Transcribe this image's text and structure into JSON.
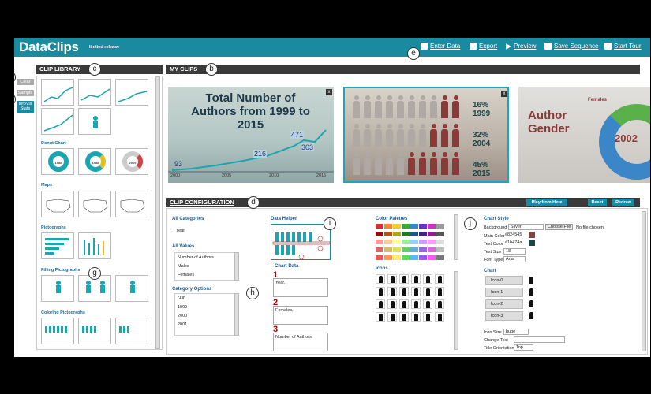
{
  "header": {
    "logo": "DataClips",
    "tagline": "limited release",
    "nav": [
      "Enter Data",
      "Export",
      "Preview",
      "Save Sequence",
      "Start Tour"
    ]
  },
  "side": {
    "clear": "Clear",
    "sample": "Sample",
    "infovis": "InfoVis Stats"
  },
  "annotations": [
    "a",
    "b",
    "c",
    "d",
    "e",
    "f",
    "g",
    "h",
    "i",
    "j"
  ],
  "library": {
    "heading": "CLIP LIBRARY",
    "sections": [
      "Donut Chart",
      "Maps",
      "Pictographs",
      "Filling Pictographs",
      "Coloring Pictographs"
    ],
    "donut_labels": [
      "1988",
      "1988",
      "2009"
    ]
  },
  "myclips": {
    "heading": "MY CLIPS",
    "clip1": {
      "title": "Total Number of Authors from 1999 to 2015",
      "values": [
        "93",
        "216",
        "471",
        "303"
      ],
      "years": [
        "2000",
        "2005",
        "2010",
        "2015"
      ]
    },
    "clip2": {
      "stats": [
        {
          "pct": "16%",
          "year": "1999"
        },
        {
          "pct": "32%",
          "year": "2004"
        },
        {
          "pct": "45%",
          "year": "2015"
        }
      ]
    },
    "clip3": {
      "title": "Author Gender",
      "legend": "Females",
      "value": "2002"
    }
  },
  "config": {
    "heading": "CLIP CONFIGURATION",
    "play": "Play from Here",
    "reset": "Reset",
    "redraw": "Redraw",
    "categories_label": "All Categories",
    "categories": [
      "Year"
    ],
    "values_label": "All Values",
    "values": [
      "Number of Authors",
      "Males",
      "Females"
    ],
    "options_label": "Category Options",
    "options": [
      "\"All\"",
      "1999",
      "2000",
      "2001"
    ],
    "data_helper": "Data Helper",
    "chart_data": "Chart Data",
    "fields": [
      "Year,",
      "Females,",
      "Number of Authors,"
    ],
    "palettes": "Color Palettes",
    "icons": "Icons",
    "style": {
      "heading": "Chart Style",
      "background_label": "Background",
      "background": "Silver",
      "choose_file": "Choose File",
      "no_file": "No file chosen",
      "main_color_label": "Main Color",
      "main_color": "#824545",
      "text_color_label": "Text Color",
      "text_color": "#1b474a",
      "text_size_label": "Text Size",
      "text_size": "18",
      "font_type_label": "Font Type",
      "font_type": "Arial"
    },
    "chart_heading": "Chart",
    "chart_items": [
      "Icon-0",
      "Icon-1",
      "Icon-2",
      "Icon-3"
    ],
    "icon_size_label": "Icon Size",
    "icon_size": "huge",
    "change_text": "Change Text",
    "title_orientation_label": "Title Orientation",
    "title_orientation": "Top"
  },
  "colors": {
    "header": "#1a8aa0",
    "teal": "#1aa5b0",
    "maroon": "#8b3a3a",
    "main": "#824545",
    "text": "#1b474a"
  }
}
